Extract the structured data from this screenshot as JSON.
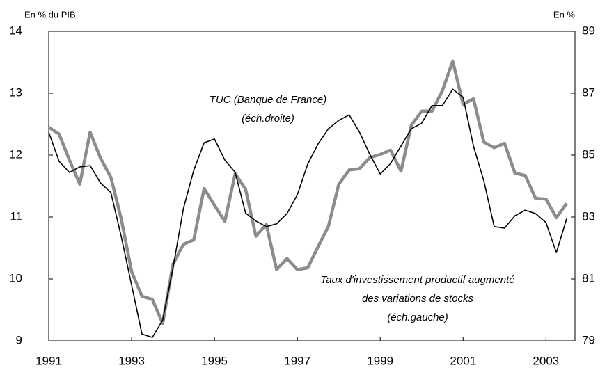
{
  "chart_data": {
    "type": "line",
    "y_label": "En % du PIB",
    "y2_label": "En %",
    "x": [
      1991,
      1991.25,
      1991.5,
      1991.75,
      1992,
      1992.25,
      1992.5,
      1992.75,
      1993,
      1993.25,
      1993.5,
      1993.75,
      1994,
      1994.25,
      1994.5,
      1994.75,
      1995,
      1995.25,
      1995.5,
      1995.75,
      1996,
      1996.25,
      1996.5,
      1996.75,
      1997,
      1997.25,
      1997.5,
      1997.75,
      1998,
      1998.25,
      1998.5,
      1998.75,
      1999,
      1999.25,
      1999.5,
      1999.75,
      2000,
      2000.25,
      2000.5,
      2000.75,
      2001,
      2001.25,
      2001.5,
      2001.75,
      2002,
      2002.25,
      2002.5,
      2002.75,
      2003,
      2003.25,
      2003.5
    ],
    "series": [
      {
        "name": "Taux d'investissement productif augmenté des variations de stocks (éch.gauche)",
        "color": "#8c8c8c",
        "axis": "y",
        "values": [
          12.45,
          12.34,
          11.92,
          11.53,
          12.37,
          11.95,
          11.64,
          10.97,
          10.12,
          9.72,
          9.67,
          9.28,
          10.24,
          10.56,
          10.63,
          11.46,
          11.19,
          10.93,
          11.7,
          11.45,
          10.69,
          10.88,
          10.15,
          10.33,
          10.15,
          10.18,
          10.52,
          10.85,
          11.53,
          11.76,
          11.78,
          11.96,
          12.01,
          12.08,
          11.74,
          12.48,
          12.71,
          12.71,
          13.04,
          13.52,
          12.82,
          12.91,
          12.21,
          12.12,
          12.19,
          11.71,
          11.67,
          11.3,
          11.29,
          10.99,
          11.22
        ]
      },
      {
        "name": "TUC (Banque de France) (éch.droite)",
        "color": "#000000",
        "axis": "y2",
        "values": [
          85.74,
          84.8,
          84.44,
          84.62,
          84.66,
          84.1,
          83.79,
          82.37,
          80.8,
          79.22,
          79.11,
          79.67,
          81.36,
          83.27,
          84.51,
          85.4,
          85.52,
          84.84,
          84.44,
          83.13,
          82.87,
          82.69,
          82.78,
          83.11,
          83.72,
          84.71,
          85.36,
          85.85,
          86.12,
          86.3,
          85.74,
          85.02,
          84.39,
          84.73,
          85.29,
          85.85,
          86.03,
          86.6,
          86.6,
          87.13,
          86.87,
          85.29,
          84.17,
          82.69,
          82.64,
          83.04,
          83.22,
          83.11,
          82.82,
          81.85,
          82.95
        ]
      }
    ],
    "annotations": [
      {
        "lines": [
          "TUC (Banque de France)",
          "(éch.droite)"
        ]
      },
      {
        "lines": [
          "Taux d'investissement productif augmenté",
          "des variations de stocks",
          "(éch.gauche)"
        ]
      }
    ],
    "xlim": [
      1991,
      2003.7
    ],
    "xticks": [
      1991,
      1993,
      1995,
      1997,
      1999,
      2001,
      2003
    ],
    "ylim": [
      9,
      14
    ],
    "yticks": [
      9,
      10,
      11,
      12,
      13,
      14
    ],
    "y2lim": [
      79,
      89
    ],
    "y2ticks": [
      79,
      81,
      83,
      85,
      87,
      89
    ]
  }
}
